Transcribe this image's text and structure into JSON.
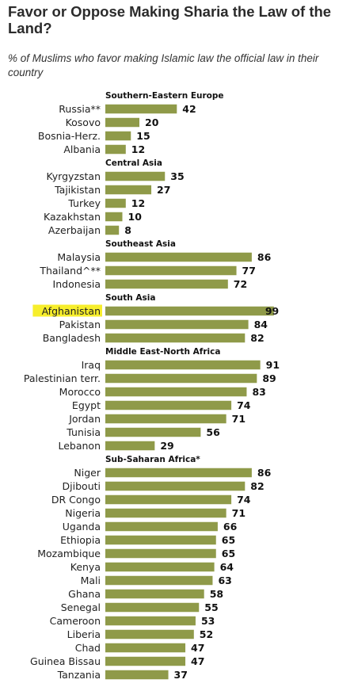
{
  "title": "Favor or Oppose Making Sharia the Law of the Land?",
  "subtitle": "% of Muslims who favor making Islamic law the official law in their country",
  "colors": {
    "bar": "#8f9a49",
    "highlight": "#f7ee2c"
  },
  "highlighted_category": "Afghanistan",
  "chart_data": {
    "type": "bar",
    "orientation": "horizontal",
    "xlim": [
      0,
      100
    ],
    "groups": [
      {
        "name": "Southern-Eastern Europe",
        "categories": [
          "Russia**",
          "Kosovo",
          "Bosnia-Herz.",
          "Albania"
        ],
        "values": [
          42,
          20,
          15,
          12
        ]
      },
      {
        "name": "Central Asia",
        "categories": [
          "Kyrgyzstan",
          "Tajikistan",
          "Turkey",
          "Kazakhstan",
          "Azerbaijan"
        ],
        "values": [
          35,
          27,
          12,
          10,
          8
        ]
      },
      {
        "name": "Southeast Asia",
        "categories": [
          "Malaysia",
          "Thailand^**",
          "Indonesia"
        ],
        "values": [
          86,
          77,
          72
        ]
      },
      {
        "name": "South Asia",
        "categories": [
          "Afghanistan",
          "Pakistan",
          "Bangladesh"
        ],
        "values": [
          99,
          84,
          82
        ]
      },
      {
        "name": "Middle East-North Africa",
        "categories": [
          "Iraq",
          "Palestinian terr.",
          "Morocco",
          "Egypt",
          "Jordan",
          "Tunisia",
          "Lebanon"
        ],
        "values": [
          91,
          89,
          83,
          74,
          71,
          56,
          29
        ]
      },
      {
        "name": "Sub-Saharan Africa*",
        "categories": [
          "Niger",
          "Djibouti",
          "DR Congo",
          "Nigeria",
          "Uganda",
          "Ethiopia",
          "Mozambique",
          "Kenya",
          "Mali",
          "Ghana",
          "Senegal",
          "Cameroon",
          "Liberia",
          "Chad",
          "Guinea Bissau",
          "Tanzania"
        ],
        "values": [
          86,
          82,
          74,
          71,
          66,
          65,
          65,
          64,
          63,
          58,
          55,
          53,
          52,
          47,
          47,
          37
        ]
      }
    ]
  }
}
